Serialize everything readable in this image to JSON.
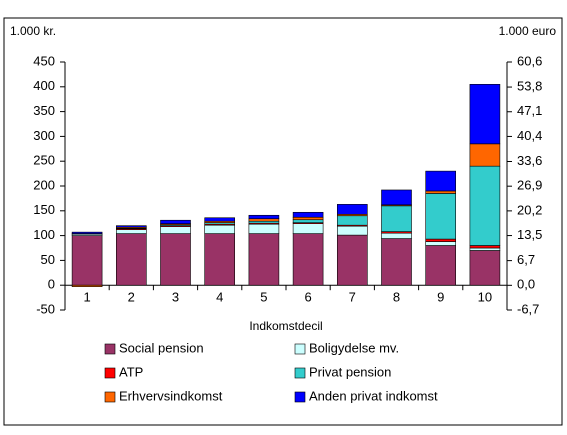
{
  "chart_data": {
    "type": "bar",
    "stacked": true,
    "y_unit_label": "1.000 kr.",
    "y2_unit_label": "1.000 euro",
    "x_label": "Indkomstdecil",
    "categories": [
      "1",
      "2",
      "3",
      "4",
      "5",
      "6",
      "7",
      "8",
      "9",
      "10"
    ],
    "series": [
      {
        "name": "Social pension",
        "color": "#993366",
        "values": [
          100,
          104,
          104,
          104,
          104,
          104,
          101,
          94,
          80,
          70
        ]
      },
      {
        "name": "Boligydelse mv.",
        "color": "#ccffff",
        "values": [
          3,
          8,
          14,
          17,
          19,
          20,
          18,
          11,
          8,
          5
        ]
      },
      {
        "name": "ATP",
        "color": "#ff0000",
        "values": [
          1,
          2,
          2,
          2,
          2,
          2,
          2,
          3,
          5,
          5
        ]
      },
      {
        "name": "Privat pension",
        "color": "#33cccc",
        "values": [
          0,
          1,
          2,
          3,
          4,
          6,
          19,
          52,
          92,
          160
        ]
      },
      {
        "name": "Erhvervsindkomst",
        "color": "#ff6600",
        "values": [
          -3,
          2,
          2,
          3,
          5,
          5,
          3,
          2,
          5,
          45
        ]
      },
      {
        "name": "Anden privat indkomst",
        "color": "#0000ff",
        "values": [
          3,
          3,
          7,
          7,
          7,
          10,
          20,
          30,
          40,
          120
        ]
      }
    ],
    "ylim": [
      -50,
      450
    ],
    "yticks": [
      -50,
      0,
      50,
      100,
      150,
      200,
      250,
      300,
      350,
      400,
      450
    ],
    "y2lim": [
      -6.7,
      60.6
    ],
    "y2ticks": [
      {
        "value": -6.7,
        "label": "-6,7"
      },
      {
        "value": 0,
        "label": "0,0"
      },
      {
        "value": 6.7,
        "label": "6,7"
      },
      {
        "value": 13.5,
        "label": "13,5"
      },
      {
        "value": 20.2,
        "label": "20,2"
      },
      {
        "value": 26.9,
        "label": "26,9"
      },
      {
        "value": 33.6,
        "label": "33,6"
      },
      {
        "value": 40.4,
        "label": "40,4"
      },
      {
        "value": 47.1,
        "label": "47,1"
      },
      {
        "value": 53.8,
        "label": "53,8"
      },
      {
        "value": 60.6,
        "label": "60,6"
      }
    ],
    "grid": false
  }
}
